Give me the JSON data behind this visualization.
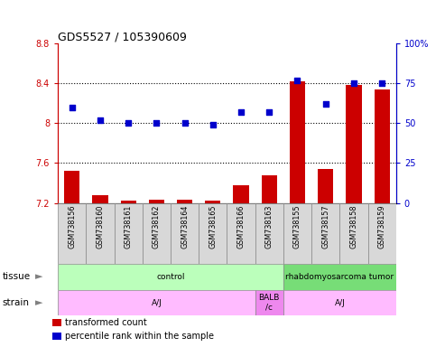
{
  "title": "GDS5527 / 105390609",
  "samples": [
    "GSM738156",
    "GSM738160",
    "GSM738161",
    "GSM738162",
    "GSM738164",
    "GSM738165",
    "GSM738166",
    "GSM738163",
    "GSM738155",
    "GSM738157",
    "GSM738158",
    "GSM738159"
  ],
  "transformed_count": [
    7.52,
    7.28,
    7.22,
    7.23,
    7.23,
    7.22,
    7.38,
    7.48,
    8.42,
    7.54,
    8.38,
    8.34
  ],
  "percentile_rank": [
    60,
    52,
    50,
    50,
    50,
    49,
    57,
    57,
    77,
    62,
    75,
    75
  ],
  "ylim_left": [
    7.2,
    8.8
  ],
  "ylim_right": [
    0,
    100
  ],
  "yticks_left": [
    7.2,
    7.6,
    8.0,
    8.4,
    8.8
  ],
  "ytick_labels_left": [
    "7.2",
    "7.6",
    "8",
    "8.4",
    "8.8"
  ],
  "yticks_right": [
    0,
    25,
    50,
    75,
    100
  ],
  "ytick_labels_right": [
    "0",
    "25",
    "50",
    "75",
    "100%"
  ],
  "hlines": [
    8.4,
    8.0,
    7.6
  ],
  "bar_color": "#cc0000",
  "dot_color": "#0000cc",
  "bar_bottom": 7.2,
  "tissue_labels": [
    {
      "label": "control",
      "start": 0,
      "end": 8,
      "color": "#bbffbb"
    },
    {
      "label": "rhabdomyosarcoma tumor",
      "start": 8,
      "end": 12,
      "color": "#77dd77"
    }
  ],
  "strain_labels": [
    {
      "label": "A/J",
      "start": 0,
      "end": 7,
      "color": "#ffbbff"
    },
    {
      "label": "BALB\n/c",
      "start": 7,
      "end": 8,
      "color": "#ee88ee"
    },
    {
      "label": "A/J",
      "start": 8,
      "end": 12,
      "color": "#ffbbff"
    }
  ],
  "legend_items": [
    {
      "color": "#cc0000",
      "label": "transformed count"
    },
    {
      "color": "#0000cc",
      "label": "percentile rank within the sample"
    }
  ],
  "axis_color_left": "#cc0000",
  "axis_color_right": "#0000cc",
  "label_box_color": "#d8d8d8",
  "label_box_edge": "#888888"
}
